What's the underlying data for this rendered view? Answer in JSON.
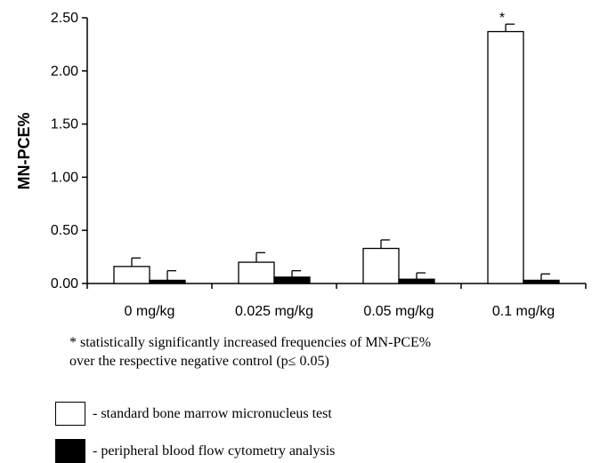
{
  "chart_data": {
    "type": "bar",
    "categories": [
      "0 mg/kg",
      "0.025 mg/kg",
      "0.05 mg/kg",
      "0.1 mg/kg"
    ],
    "series": [
      {
        "name": "- standard bone marrow micronucleus test",
        "color": "#ffffff",
        "values": [
          0.16,
          0.2,
          0.33,
          2.37
        ],
        "errors": [
          0.08,
          0.09,
          0.08,
          0.07
        ]
      },
      {
        "name": "- peripheral blood  flow cytometry analysis",
        "color": "#000000",
        "values": [
          0.03,
          0.06,
          0.04,
          0.03
        ],
        "errors": [
          0.09,
          0.06,
          0.06,
          0.06
        ]
      }
    ],
    "ylabel": "MN-PCE%",
    "xlabel": "",
    "ylim": [
      0,
      2.5
    ],
    "yticks": [
      "0.00",
      "0.50",
      "1.00",
      "1.50",
      "2.00",
      "2.50"
    ],
    "significance_marks": [
      {
        "category": "0.1 mg/kg",
        "series": 0,
        "symbol": "*"
      }
    ],
    "grid": false,
    "legend_position": "bottom-left"
  },
  "note": {
    "line1": "* statistically significantly increased frequencies of MN-PCE%",
    "line2": "over the respective negative control (p≤ 0.05)"
  },
  "legend": {
    "items": [
      {
        "label": "- standard bone marrow micronucleus test",
        "color": "#ffffff"
      },
      {
        "label": "- peripheral blood  flow cytometry analysis",
        "color": "#000000"
      }
    ]
  }
}
